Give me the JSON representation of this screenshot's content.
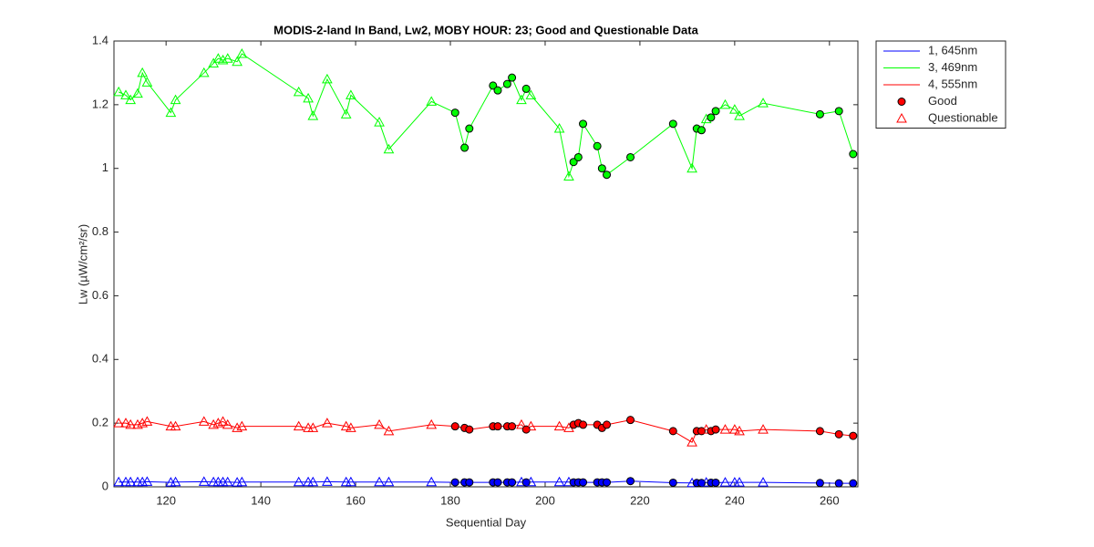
{
  "chart_data": {
    "type": "line",
    "title": "MODIS-2-land In Band,  Lw2, MOBY HOUR: 23;  Good and Questionable Data",
    "x_label": "Sequential Day",
    "y_label": "Lw (µW/cm²/sr)",
    "x": [
      110,
      111.5,
      112.5,
      114,
      115,
      116,
      121,
      122,
      128,
      130,
      131,
      132,
      133,
      135,
      136,
      148,
      150,
      151,
      154,
      158,
      159,
      165,
      167,
      176,
      181,
      183,
      184,
      189,
      190,
      192,
      193,
      195,
      196,
      197,
      203,
      205,
      206,
      207,
      208,
      211,
      212,
      213,
      218,
      227,
      231,
      232,
      233,
      234,
      235,
      236,
      238,
      240,
      241,
      246,
      258,
      262,
      265
    ],
    "good": [
      false,
      false,
      false,
      false,
      false,
      false,
      false,
      false,
      false,
      false,
      false,
      false,
      false,
      false,
      false,
      false,
      false,
      false,
      false,
      false,
      false,
      false,
      false,
      false,
      true,
      true,
      true,
      true,
      true,
      true,
      true,
      false,
      true,
      false,
      false,
      false,
      true,
      true,
      true,
      true,
      true,
      true,
      true,
      true,
      false,
      true,
      true,
      false,
      true,
      true,
      false,
      false,
      false,
      false,
      true,
      true,
      true
    ],
    "series": [
      {
        "name": "1, 645nm",
        "color": "#0000ff",
        "values": [
          0.015,
          0.015,
          0.015,
          0.015,
          0.015,
          0.016,
          0.014,
          0.015,
          0.016,
          0.015,
          0.015,
          0.015,
          0.015,
          0.014,
          0.015,
          0.015,
          0.015,
          0.015,
          0.016,
          0.015,
          0.015,
          0.015,
          0.015,
          0.015,
          0.014,
          0.014,
          0.014,
          0.014,
          0.014,
          0.014,
          0.014,
          0.015,
          0.014,
          0.015,
          0.015,
          0.015,
          0.014,
          0.014,
          0.014,
          0.014,
          0.014,
          0.014,
          0.018,
          0.013,
          0.012,
          0.012,
          0.012,
          0.014,
          0.013,
          0.013,
          0.014,
          0.014,
          0.014,
          0.014,
          0.012,
          0.011,
          0.011
        ]
      },
      {
        "name": "3, 469nm",
        "color": "#00ff00",
        "values": [
          1.24,
          1.23,
          1.215,
          1.235,
          1.3,
          1.27,
          1.175,
          1.215,
          1.3,
          1.33,
          1.345,
          1.34,
          1.345,
          1.335,
          1.36,
          1.24,
          1.22,
          1.165,
          1.28,
          1.17,
          1.23,
          1.145,
          1.06,
          1.21,
          1.175,
          1.065,
          1.125,
          1.26,
          1.245,
          1.265,
          1.285,
          1.215,
          1.25,
          1.23,
          1.125,
          0.975,
          1.02,
          1.035,
          1.14,
          1.07,
          1.0,
          0.98,
          1.035,
          1.14,
          1.0,
          1.125,
          1.12,
          1.155,
          1.16,
          1.18,
          1.2,
          1.185,
          1.165,
          1.205,
          1.17,
          1.18,
          1.045
        ]
      },
      {
        "name": "4, 555nm",
        "color": "#ff0000",
        "values": [
          0.2,
          0.2,
          0.195,
          0.195,
          0.2,
          0.205,
          0.19,
          0.19,
          0.205,
          0.195,
          0.2,
          0.205,
          0.195,
          0.185,
          0.19,
          0.19,
          0.185,
          0.185,
          0.2,
          0.19,
          0.185,
          0.195,
          0.175,
          0.195,
          0.19,
          0.185,
          0.18,
          0.19,
          0.19,
          0.19,
          0.19,
          0.195,
          0.18,
          0.19,
          0.19,
          0.185,
          0.195,
          0.2,
          0.195,
          0.195,
          0.185,
          0.195,
          0.21,
          0.175,
          0.14,
          0.175,
          0.175,
          0.18,
          0.175,
          0.18,
          0.18,
          0.18,
          0.175,
          0.18,
          0.175,
          0.165,
          0.16
        ]
      }
    ],
    "legend_markers": [
      "Good",
      "Questionable"
    ],
    "legend_position": "outside-upper-right",
    "xlim": [
      109,
      266
    ],
    "ylim": [
      0,
      1.4
    ],
    "xticks": [
      120,
      140,
      160,
      180,
      200,
      220,
      240,
      260
    ],
    "yticks": [
      0,
      0.2,
      0.4,
      0.6,
      0.8,
      1,
      1.2,
      1.4
    ],
    "grid": false
  }
}
